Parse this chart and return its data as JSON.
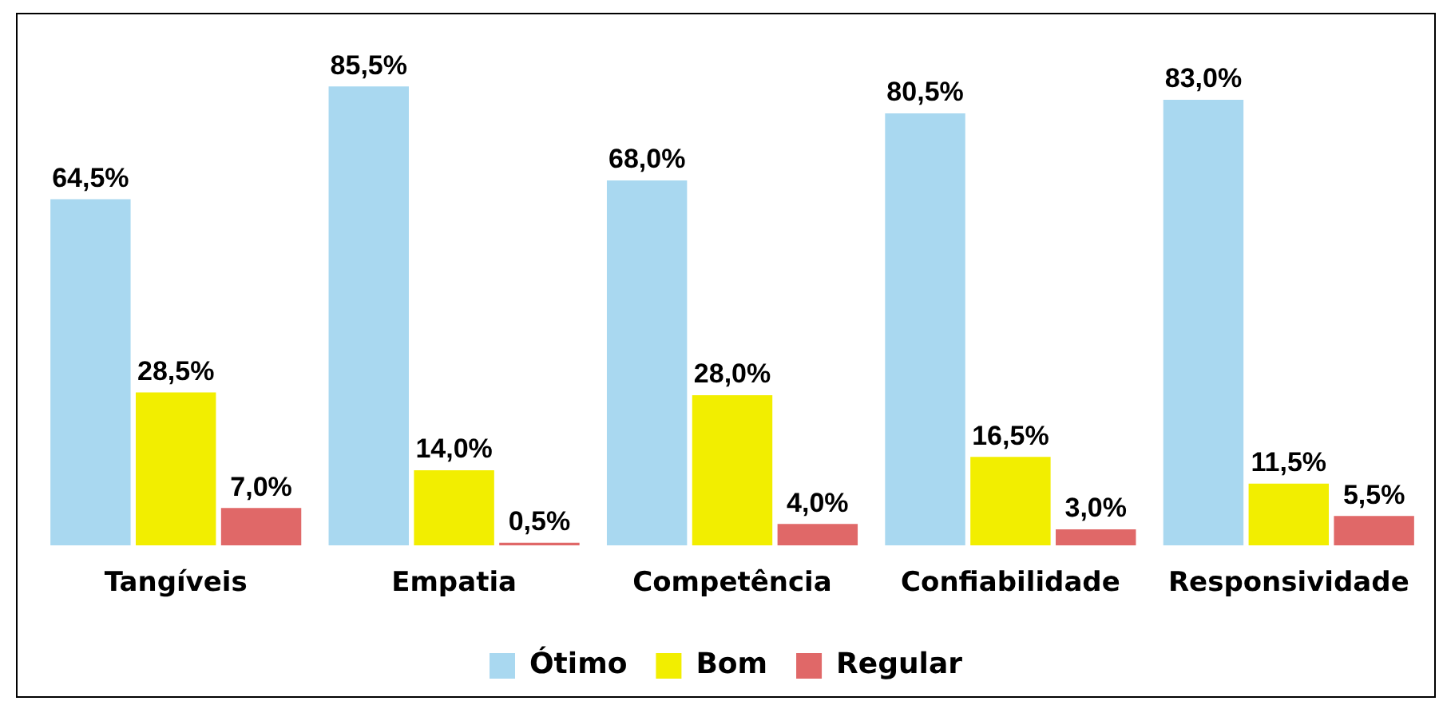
{
  "chart_data": {
    "type": "bar",
    "categories": [
      "Tangíveis",
      "Empatia",
      "Competência",
      "Confiabilidade",
      "Responsividade"
    ],
    "series": [
      {
        "name": "Ótimo",
        "color": "#a9d8f0",
        "values": [
          64.5,
          85.5,
          68.0,
          80.5,
          83.0
        ],
        "value_labels": [
          "64,5%",
          "85,5%",
          "68,0%",
          "80,5%",
          "83,0%"
        ]
      },
      {
        "name": "Bom",
        "color": "#f2ee00",
        "values": [
          28.5,
          14.0,
          28.0,
          16.5,
          11.5
        ],
        "value_labels": [
          "28,5%",
          "14,0%",
          "28,0%",
          "16,5%",
          "11,5%"
        ]
      },
      {
        "name": "Regular",
        "color": "#e06868",
        "values": [
          7.0,
          0.5,
          4.0,
          3.0,
          5.5
        ],
        "value_labels": [
          "7,0%",
          "0,5%",
          "4,0%",
          "3,0%",
          "5,5%"
        ]
      }
    ],
    "legend": "bottom",
    "grid": false
  }
}
